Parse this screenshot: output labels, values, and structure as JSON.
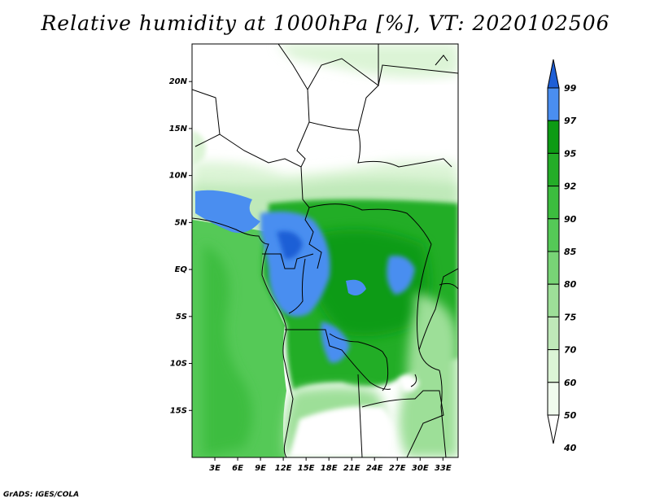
{
  "title": "Relative humidity at 1000hPa [%], VT: 2020102506",
  "credit": "GrADS: IGES/COLA",
  "map": {
    "lat_labels": [
      "20N",
      "15N",
      "10N",
      "5N",
      "EQ",
      "5S",
      "10S",
      "15S"
    ],
    "lon_labels": [
      "3E",
      "6E",
      "9E",
      "12E",
      "15E",
      "18E",
      "21E",
      "24E",
      "27E",
      "30E",
      "33E"
    ],
    "lat_range": [
      -20,
      24
    ],
    "lon_range": [
      0,
      35
    ]
  },
  "colorbar": {
    "labels": [
      "99",
      "97",
      "95",
      "92",
      "90",
      "85",
      "80",
      "75",
      "70",
      "60",
      "50",
      "40"
    ],
    "colors": [
      "#1e5fd6",
      "#4a8ef0",
      "#0d9b14",
      "#24ad28",
      "#3cbd3f",
      "#55c957",
      "#78d476",
      "#9ddf98",
      "#bfe9b9",
      "#dcf4d6",
      "#f0fbee",
      "#ffffff"
    ]
  }
}
